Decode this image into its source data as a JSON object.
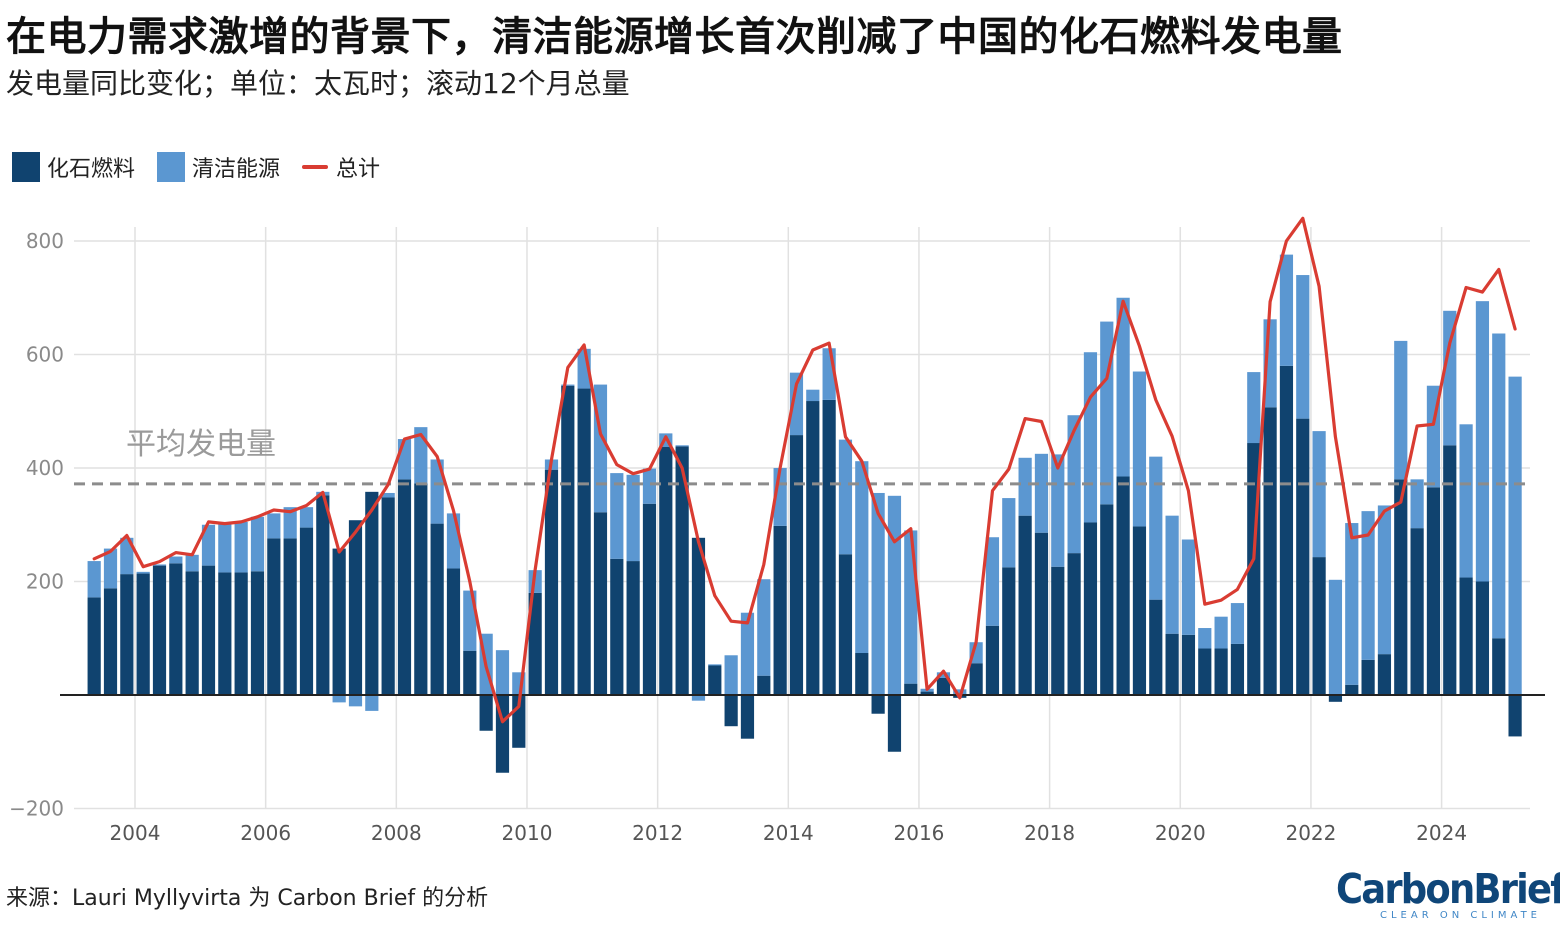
{
  "header": {
    "title": "在电力需求激增的背景下，清洁能源增长首次削减了中国的化石燃料发电量",
    "subtitle": "发电量同比变化；单位：太瓦时；滚动12个月总量"
  },
  "legend": {
    "fossil_label": "化石燃料",
    "clean_label": "清洁能源",
    "total_label": "总计"
  },
  "colors": {
    "fossil": "#10436f",
    "clean": "#5b97d1",
    "total": "#d93c32",
    "average_line": "#8c8c8c",
    "grid": "#e1e1e1",
    "axis_text": "#8a8a8a"
  },
  "footer": {
    "source": "来源：Lauri Myllyvirta 为 Carbon Brief 的分析",
    "logo_name": "CarbonBrief",
    "logo_tagline": "CLEAR ON CLIMATE"
  },
  "chart_data": {
    "type": "bar",
    "stacked": true,
    "title": "在电力需求激增的背景下，清洁能源增长首次削减了中国的化石燃料发电量",
    "subtitle": "发电量同比变化；单位：太瓦时；滚动12个月总量",
    "ylim": [
      -200,
      800
    ],
    "yticks": [
      -200,
      200,
      400,
      600,
      800
    ],
    "xlim": [
      2003.25,
      2025.5
    ],
    "xticks": [
      2004,
      2006,
      2008,
      2010,
      2012,
      2014,
      2016,
      2018,
      2020,
      2022,
      2024
    ],
    "grid": true,
    "legend_position": "top-left",
    "reference_line": {
      "label": "平均发电量",
      "value": 372
    },
    "x": [
      2003.5,
      2003.75,
      2004,
      2004.25,
      2004.5,
      2004.75,
      2005,
      2005.25,
      2005.5,
      2005.75,
      2006,
      2006.25,
      2006.5,
      2006.75,
      2007,
      2007.25,
      2007.5,
      2007.75,
      2008,
      2008.25,
      2008.5,
      2008.75,
      2009,
      2009.25,
      2009.5,
      2009.75,
      2010,
      2010.25,
      2010.5,
      2010.75,
      2011,
      2011.25,
      2011.5,
      2011.75,
      2012,
      2012.25,
      2012.5,
      2012.75,
      2013,
      2013.25,
      2013.5,
      2013.75,
      2014,
      2014.25,
      2014.5,
      2014.75,
      2015,
      2015.25,
      2015.5,
      2015.75,
      2016,
      2016.25,
      2016.5,
      2016.75,
      2017,
      2017.25,
      2017.5,
      2017.75,
      2018,
      2018.25,
      2018.5,
      2018.75,
      2019,
      2019.25,
      2019.5,
      2019.75,
      2020,
      2020.25,
      2020.5,
      2020.75,
      2021,
      2021.25,
      2021.5,
      2021.75,
      2022,
      2022.25,
      2022.5,
      2022.75,
      2023,
      2023.25,
      2023.5,
      2023.75,
      2024,
      2024.25,
      2024.5,
      2024.75,
      2025,
      2025.25
    ],
    "series": [
      {
        "name": "化石燃料",
        "kind": "bar",
        "values": [
          172,
          188,
          213,
          214,
          228,
          232,
          218,
          228,
          216,
          216,
          218,
          276,
          276,
          295,
          352,
          258,
          308,
          358,
          348,
          380,
          373,
          302,
          223,
          78,
          -63,
          -137,
          -93,
          180,
          397,
          545,
          540,
          322,
          240,
          236,
          337,
          437,
          438,
          277,
          52,
          -55,
          -77,
          34,
          298,
          458,
          518,
          520,
          248,
          74,
          -33,
          -100,
          20,
          6,
          30,
          -5,
          56,
          122,
          225,
          316,
          286,
          226,
          250,
          304,
          336,
          385,
          297,
          168,
          108,
          106,
          82,
          82,
          90,
          444,
          507,
          580,
          487,
          243,
          -12,
          18,
          62,
          72,
          380,
          294,
          366,
          440,
          207,
          200,
          100,
          -73
        ]
      },
      {
        "name": "清洁能源",
        "kind": "bar",
        "values": [
          64,
          70,
          64,
          3,
          2,
          12,
          29,
          72,
          86,
          89,
          96,
          44,
          55,
          36,
          6,
          -13,
          -20,
          -28,
          8,
          71,
          99,
          113,
          97,
          106,
          108,
          79,
          40,
          40,
          18,
          2,
          70,
          225,
          151,
          152,
          62,
          24,
          2,
          -10,
          2,
          70,
          145,
          170,
          102,
          110,
          20,
          91,
          202,
          338,
          356,
          351,
          270,
          5,
          10,
          10,
          37,
          156,
          122,
          102,
          139,
          198,
          243,
          300,
          322,
          315,
          273,
          252,
          208,
          168,
          36,
          56,
          72,
          125,
          155,
          196,
          253,
          222,
          203,
          285,
          262,
          262,
          244,
          86,
          179,
          237,
          270,
          494,
          537,
          561
        ]
      },
      {
        "name": "总计",
        "kind": "line",
        "values": [
          240,
          253,
          281,
          226,
          235,
          251,
          247,
          305,
          302,
          305,
          314,
          326,
          323,
          334,
          357,
          252,
          287,
          326,
          371,
          451,
          459,
          420,
          325,
          200,
          50,
          -47,
          -20,
          220,
          415,
          577,
          617,
          460,
          406,
          390,
          398,
          455,
          400,
          270,
          175,
          130,
          127,
          230,
          400,
          548,
          608,
          620,
          455,
          412,
          320,
          270,
          293,
          10,
          42,
          -5,
          93,
          360,
          398,
          487,
          482,
          400,
          466,
          525,
          558,
          694,
          615,
          520,
          456,
          360,
          160,
          167,
          186,
          240,
          693,
          800,
          840,
          720,
          455,
          277,
          282,
          324,
          340,
          474,
          477,
          620,
          718,
          710,
          750,
          645
        ]
      }
    ]
  }
}
